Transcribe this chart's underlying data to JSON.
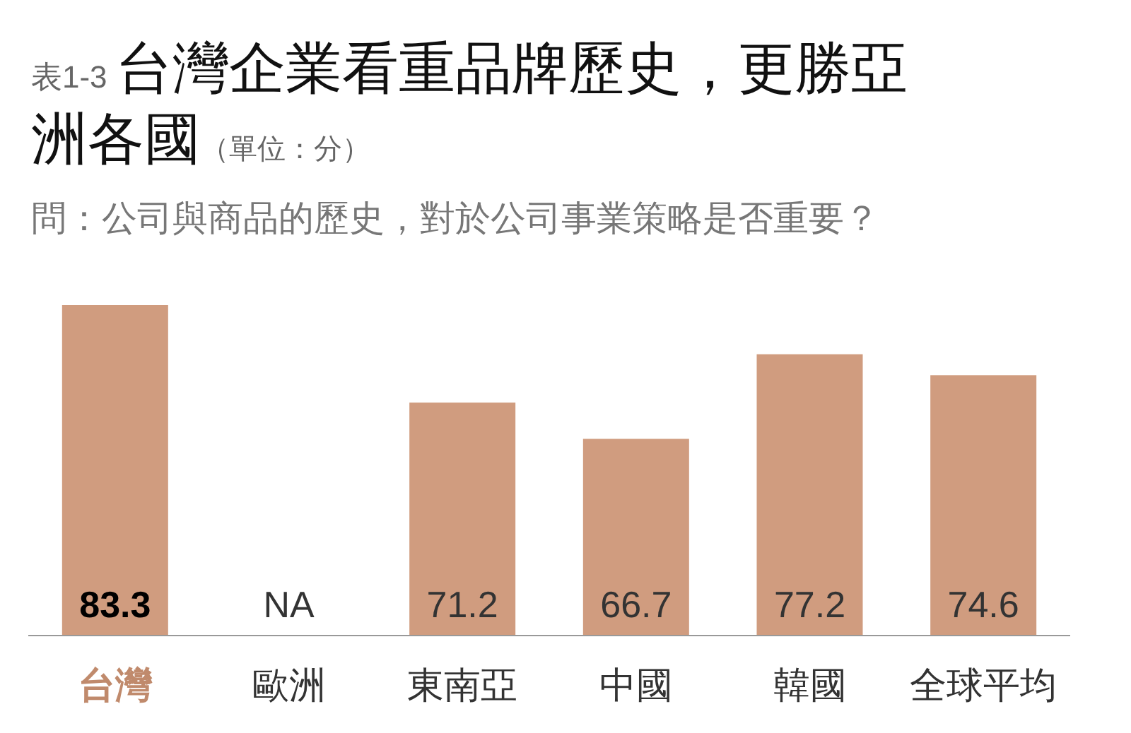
{
  "chart_data": {
    "type": "bar",
    "title": "台灣企業看重品牌歷史，更勝亞洲各國",
    "subtitle": "問：公司與商品的歷史，對於公司事業策略是否重要？",
    "annotations": [
      "表1-3",
      "（單位：分）"
    ],
    "categories": [
      "台灣",
      "歐洲",
      "東南亞",
      "中國",
      "韓國",
      "全球平均"
    ],
    "values": [
      83.3,
      null,
      71.2,
      66.7,
      77.2,
      74.6
    ],
    "value_labels": [
      "83.3",
      "NA",
      "71.2",
      "66.7",
      "77.2",
      "74.6"
    ],
    "color": "#d09c7f",
    "ylim": [
      42.3,
      83.3
    ]
  }
}
